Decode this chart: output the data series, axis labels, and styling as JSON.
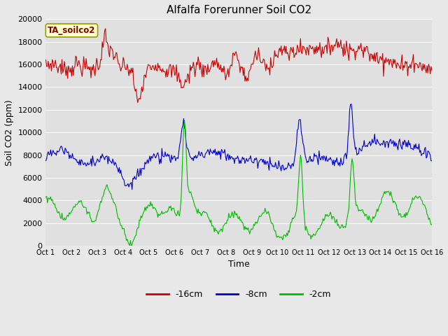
{
  "title": "Alfalfa Forerunner Soil CO2",
  "ylabel": "Soil CO2 (ppm)",
  "xlabel": "Time",
  "legend_label": "TA_soilco2",
  "series_labels": [
    "-16cm",
    "-8cm",
    "-2cm"
  ],
  "series_colors": [
    "#cc0000",
    "#0000cc",
    "#00bb00"
  ],
  "ylim": [
    0,
    20000
  ],
  "yticks": [
    0,
    2000,
    4000,
    6000,
    8000,
    10000,
    12000,
    14000,
    16000,
    18000,
    20000
  ],
  "xtick_labels": [
    "Oct 1",
    "Oct 2",
    "Oct 3",
    "Oct 4",
    "Oct 5",
    "Oct 6",
    "Oct 7",
    "Oct 8",
    "Oct 9",
    "Oct 10",
    "Oct 11",
    "Oct 12",
    "Oct 13",
    "Oct 14",
    "Oct 15",
    "Oct 16"
  ],
  "fig_bg_color": "#e8e8e8",
  "plot_bg_color": "#e0e0e0",
  "grid_color": "#ffffff",
  "title_fontsize": 11,
  "axis_label_fontsize": 9,
  "tick_fontsize": 8,
  "legend_box_facecolor": "#ffffcc",
  "legend_box_edgecolor": "#999900",
  "n_points": 480
}
